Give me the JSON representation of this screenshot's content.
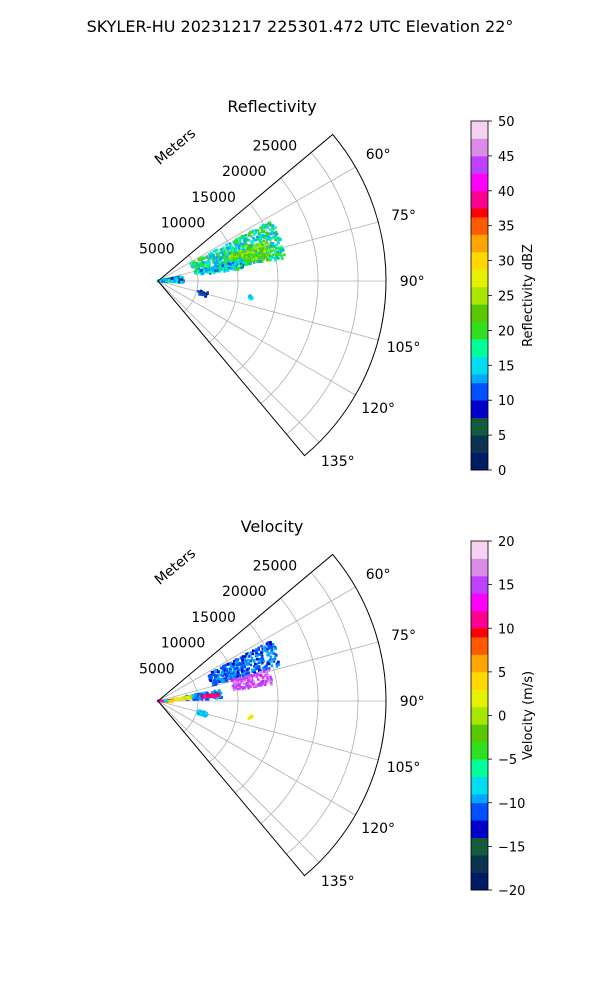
{
  "suptitle": "SKYLER-HU  20231217  225301.472 UTC Elevation 22°",
  "chart_data": [
    {
      "type": "polar",
      "title": "Reflectivity",
      "radial_axis_label": "Meters",
      "radial_ticks": [
        "5000",
        "10000",
        "15000",
        "20000",
        "25000"
      ],
      "radial_tick_values": [
        5000,
        10000,
        15000,
        20000,
        25000
      ],
      "rmax": 28500,
      "theta_range_deg": [
        50,
        140
      ],
      "theta_ticks": [
        "60°",
        "75°",
        "90°",
        "105°",
        "120°",
        "135°"
      ],
      "theta_tick_values": [
        60,
        75,
        90,
        105,
        120,
        135
      ],
      "colorbar": {
        "label": "Reflectivity dBZ",
        "range": [
          0,
          50
        ],
        "ticks": [
          "0",
          "5",
          "10",
          "15",
          "20",
          "25",
          "30",
          "35",
          "40",
          "45",
          "50"
        ],
        "tick_values": [
          0,
          5,
          10,
          15,
          20,
          25,
          30,
          35,
          40,
          45,
          50
        ],
        "levels": 40,
        "colors": [
          "#001a66",
          "#0a3352",
          "#145a3c",
          "#0000c8",
          "#0050ff",
          "#00a8ff",
          "#00ddf0",
          "#00ff99",
          "#30e01e",
          "#58c800",
          "#a8e600",
          "#e6f000",
          "#ffd800",
          "#ffa500",
          "#ff5a00",
          "#ff0000",
          "#ff0090",
          "#ff00ff",
          "#c040ff",
          "#dc8ce6",
          "#f4d2f0"
        ]
      },
      "echo_regions": [
        {
          "az": [
            62,
            80
          ],
          "r": [
            4600,
            16200
          ],
          "value_range": [
            12,
            22
          ]
        },
        {
          "az": [
            70,
            78
          ],
          "r": [
            9500,
            14500
          ],
          "value_range": [
            20,
            26
          ]
        },
        {
          "az": [
            76,
            82
          ],
          "r": [
            5500,
            11000
          ],
          "value_range": [
            10,
            20
          ]
        },
        {
          "az": [
            78,
            94
          ],
          "r": [
            0,
            3200
          ],
          "value_range": [
            8,
            20
          ]
        },
        {
          "az": [
            103,
            108
          ],
          "r": [
            5200,
            6400
          ],
          "value_range": [
            2,
            12
          ]
        },
        {
          "az": [
            99,
            101
          ],
          "r": [
            11500,
            12000
          ],
          "value_range": [
            14,
            16
          ]
        }
      ]
    },
    {
      "type": "polar",
      "title": "Velocity",
      "radial_axis_label": "Meters",
      "radial_ticks": [
        "5000",
        "10000",
        "15000",
        "20000",
        "25000"
      ],
      "radial_tick_values": [
        5000,
        10000,
        15000,
        20000,
        25000
      ],
      "rmax": 28500,
      "theta_range_deg": [
        50,
        140
      ],
      "theta_ticks": [
        "60°",
        "75°",
        "90°",
        "105°",
        "120°",
        "135°"
      ],
      "theta_tick_values": [
        60,
        75,
        90,
        105,
        120,
        135
      ],
      "colorbar": {
        "label": "Velocity (m/s)",
        "range": [
          -20,
          20
        ],
        "ticks": [
          "−20",
          "−15",
          "−10",
          "−5",
          "0",
          "5",
          "10",
          "15",
          "20"
        ],
        "tick_values": [
          -20,
          -15,
          -10,
          -5,
          0,
          5,
          10,
          15,
          20
        ],
        "levels": 40,
        "colors": [
          "#001a66",
          "#0a3352",
          "#145a3c",
          "#0000c8",
          "#0050ff",
          "#00a8ff",
          "#00ddf0",
          "#00ff99",
          "#30e01e",
          "#58c800",
          "#a8e600",
          "#e6f000",
          "#ffd800",
          "#ffa500",
          "#ff5a00",
          "#ff0000",
          "#ff0090",
          "#ff00ff",
          "#c040ff",
          "#dc8ce6",
          "#f4d2f0"
        ]
      },
      "echo_regions": [
        {
          "az": [
            62,
            74
          ],
          "r": [
            7000,
            16200
          ],
          "value_range": [
            -13,
            -9
          ]
        },
        {
          "az": [
            74,
            82
          ],
          "r": [
            9500,
            14500
          ],
          "value_range": [
            14,
            17
          ]
        },
        {
          "az": [
            80,
            88
          ],
          "r": [
            3500,
            8000
          ],
          "value_range": [
            -12,
            -8
          ]
        },
        {
          "az": [
            82,
            86
          ],
          "r": [
            1600,
            4200
          ],
          "value_range": [
            0,
            4
          ]
        },
        {
          "az": [
            86,
            94
          ],
          "r": [
            0,
            1800
          ],
          "value_range": [
            -8,
            14
          ]
        },
        {
          "az": [
            83,
            86
          ],
          "r": [
            5500,
            7800
          ],
          "value_range": [
            9,
            14
          ]
        },
        {
          "az": [
            103,
            108
          ],
          "r": [
            5200,
            6400
          ],
          "value_range": [
            -10,
            -7
          ]
        },
        {
          "az": [
            99,
            101
          ],
          "r": [
            11500,
            12000
          ],
          "value_range": [
            2,
            4
          ]
        }
      ]
    }
  ]
}
